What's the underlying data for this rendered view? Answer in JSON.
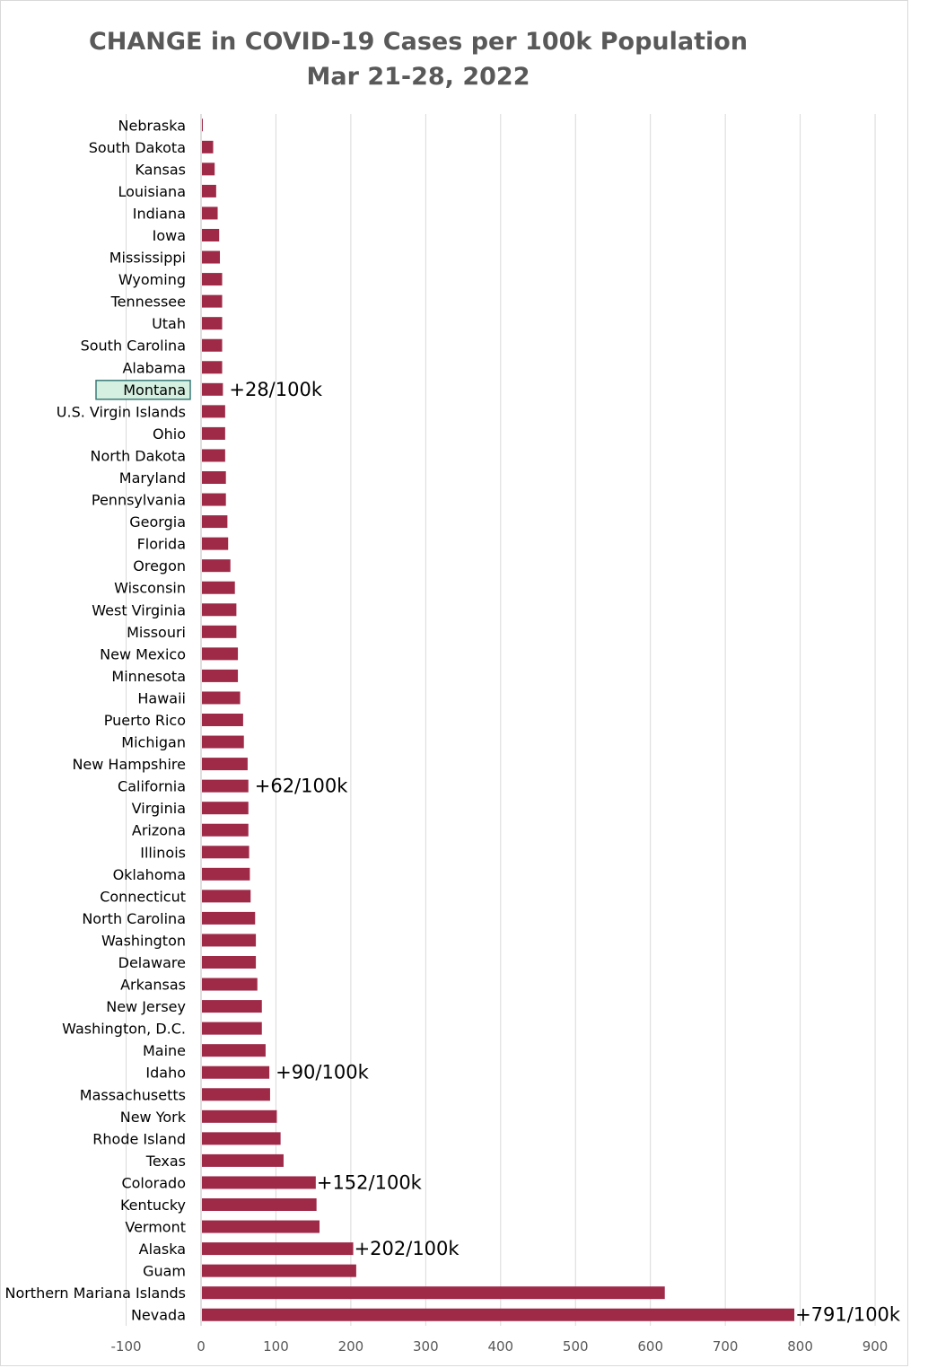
{
  "title_line1": "CHANGE in COVID-19 Cases per 100k Population",
  "title_line2": "Mar 21-28, 2022",
  "chart_data": {
    "type": "bar",
    "orientation": "horizontal",
    "title": "CHANGE in COVID-19 Cases per 100k Population",
    "subtitle": "Mar 21-28, 2022",
    "xlim": [
      -100,
      900
    ],
    "x_ticks": [
      -100,
      0,
      100,
      200,
      300,
      400,
      500,
      600,
      700,
      800,
      900
    ],
    "grid": "vertical gridlines",
    "bar_color": "#9e2a48",
    "highlight": {
      "category": "Montana",
      "fill": "#d5f0e0",
      "border": "#3a7a78"
    },
    "categories": [
      "Nebraska",
      "South Dakota",
      "Kansas",
      "Louisiana",
      "Indiana",
      "Iowa",
      "Mississippi",
      "Wyoming",
      "Tennessee",
      "Utah",
      "South Carolina",
      "Alabama",
      "Montana",
      "U.S. Virgin Islands",
      "Ohio",
      "North Dakota",
      "Maryland",
      "Pennsylvania",
      "Georgia",
      "Florida",
      "Oregon",
      "Wisconsin",
      "West Virginia",
      "Missouri",
      "New Mexico",
      "Minnesota",
      "Hawaii",
      "Puerto Rico",
      "Michigan",
      "New Hampshire",
      "California",
      "Virginia",
      "Arizona",
      "Illinois",
      "Oklahoma",
      "Connecticut",
      "North Carolina",
      "Washington",
      "Delaware",
      "Arkansas",
      "New Jersey",
      "Washington, D.C.",
      "Maine",
      "Idaho",
      "Massachusetts",
      "New York",
      "Rhode Island",
      "Texas",
      "Colorado",
      "Kentucky",
      "Vermont",
      "Alaska",
      "Guam",
      "Northern Mariana Islands",
      "Nevada"
    ],
    "values": [
      1,
      15,
      17,
      19,
      21,
      23,
      24,
      27,
      27,
      27,
      27,
      27,
      28,
      31,
      31,
      31,
      32,
      32,
      34,
      35,
      38,
      44,
      46,
      46,
      48,
      48,
      51,
      55,
      56,
      61,
      62,
      62,
      62,
      63,
      64,
      65,
      71,
      72,
      72,
      74,
      80,
      80,
      85,
      90,
      91,
      100,
      105,
      109,
      152,
      153,
      157,
      202,
      206,
      618,
      791
    ],
    "annotations": [
      {
        "category": "Montana",
        "text": "+28/100k"
      },
      {
        "category": "California",
        "text": "+62/100k"
      },
      {
        "category": "Idaho",
        "text": "+90/100k"
      },
      {
        "category": "Colorado",
        "text": "+152/100k"
      },
      {
        "category": "Alaska",
        "text": "+202/100k"
      },
      {
        "category": "Nevada",
        "text": "+791/100k"
      }
    ]
  }
}
